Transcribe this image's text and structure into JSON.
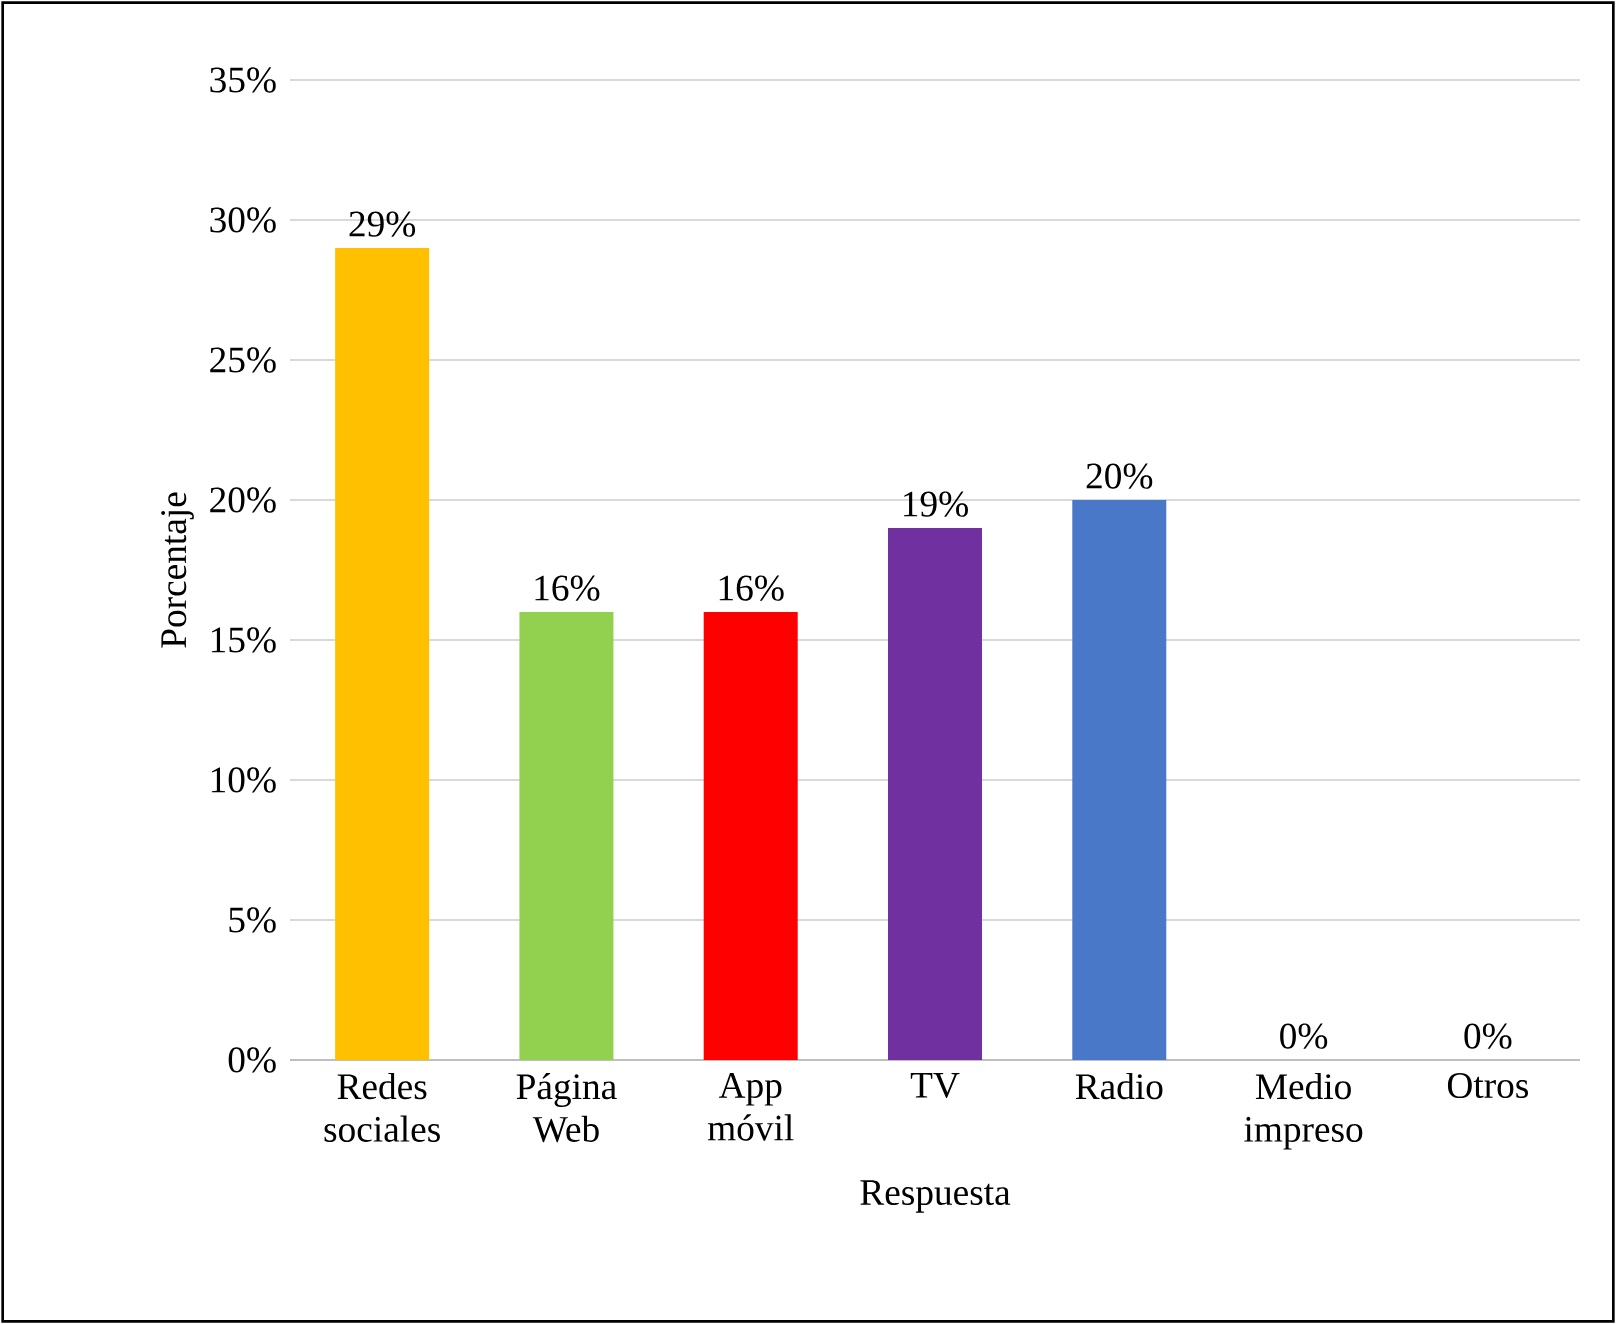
{
  "chart_data": {
    "type": "bar",
    "xlabel": "Respuesta",
    "ylabel": "Porcentaje",
    "categories": [
      "Redes sociales",
      "Página Web",
      "App móvil",
      "TV",
      "Radio",
      "Medio impreso",
      "Otros"
    ],
    "values": [
      29,
      16,
      16,
      19,
      20,
      0,
      0
    ],
    "value_labels": [
      "29%",
      "16%",
      "16%",
      "19%",
      "20%",
      "0%",
      "0%"
    ],
    "colors": [
      "#ffc000",
      "#92d050",
      "#ff0000",
      "#7030a0",
      "#4a78c8",
      "#a5a5a5",
      "#a5a5a5"
    ],
    "ylim": [
      0,
      35
    ],
    "yticks": [
      {
        "value": 0,
        "label": "0%"
      },
      {
        "value": 5,
        "label": "5%"
      },
      {
        "value": 10,
        "label": "10%"
      },
      {
        "value": 15,
        "label": "15%"
      },
      {
        "value": 20,
        "label": "20%"
      },
      {
        "value": 25,
        "label": "25%"
      },
      {
        "value": 30,
        "label": "30%"
      },
      {
        "value": 35,
        "label": "35%"
      }
    ],
    "grid": "y"
  }
}
